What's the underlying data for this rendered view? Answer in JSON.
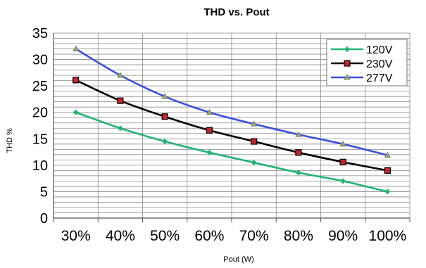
{
  "chart_data": {
    "type": "line",
    "title": "THD vs. Pout",
    "xlabel": "Pout (W)",
    "ylabel": "THD %",
    "categories": [
      "30%",
      "40%",
      "50%",
      "60%",
      "70%",
      "80%",
      "90%",
      "100%"
    ],
    "ylim": [
      0,
      35
    ],
    "yticks": [
      0,
      5,
      10,
      15,
      20,
      25,
      30,
      35
    ],
    "grid": true,
    "legend_position": "top-right",
    "series": [
      {
        "name": "120V",
        "color": "#22b573",
        "marker": "diamond",
        "values": [
          20,
          17,
          14.5,
          12.4,
          10.5,
          8.6,
          7,
          5
        ]
      },
      {
        "name": "230V",
        "color": "#000000",
        "marker": "square",
        "values": [
          26.1,
          22.2,
          19.2,
          16.6,
          14.5,
          12.4,
          10.6,
          9
        ]
      },
      {
        "name": "277V",
        "color": "#3b4fe0",
        "marker": "triangle",
        "values": [
          32,
          27,
          23,
          20,
          17.8,
          15.8,
          14,
          11.9
        ]
      }
    ]
  }
}
